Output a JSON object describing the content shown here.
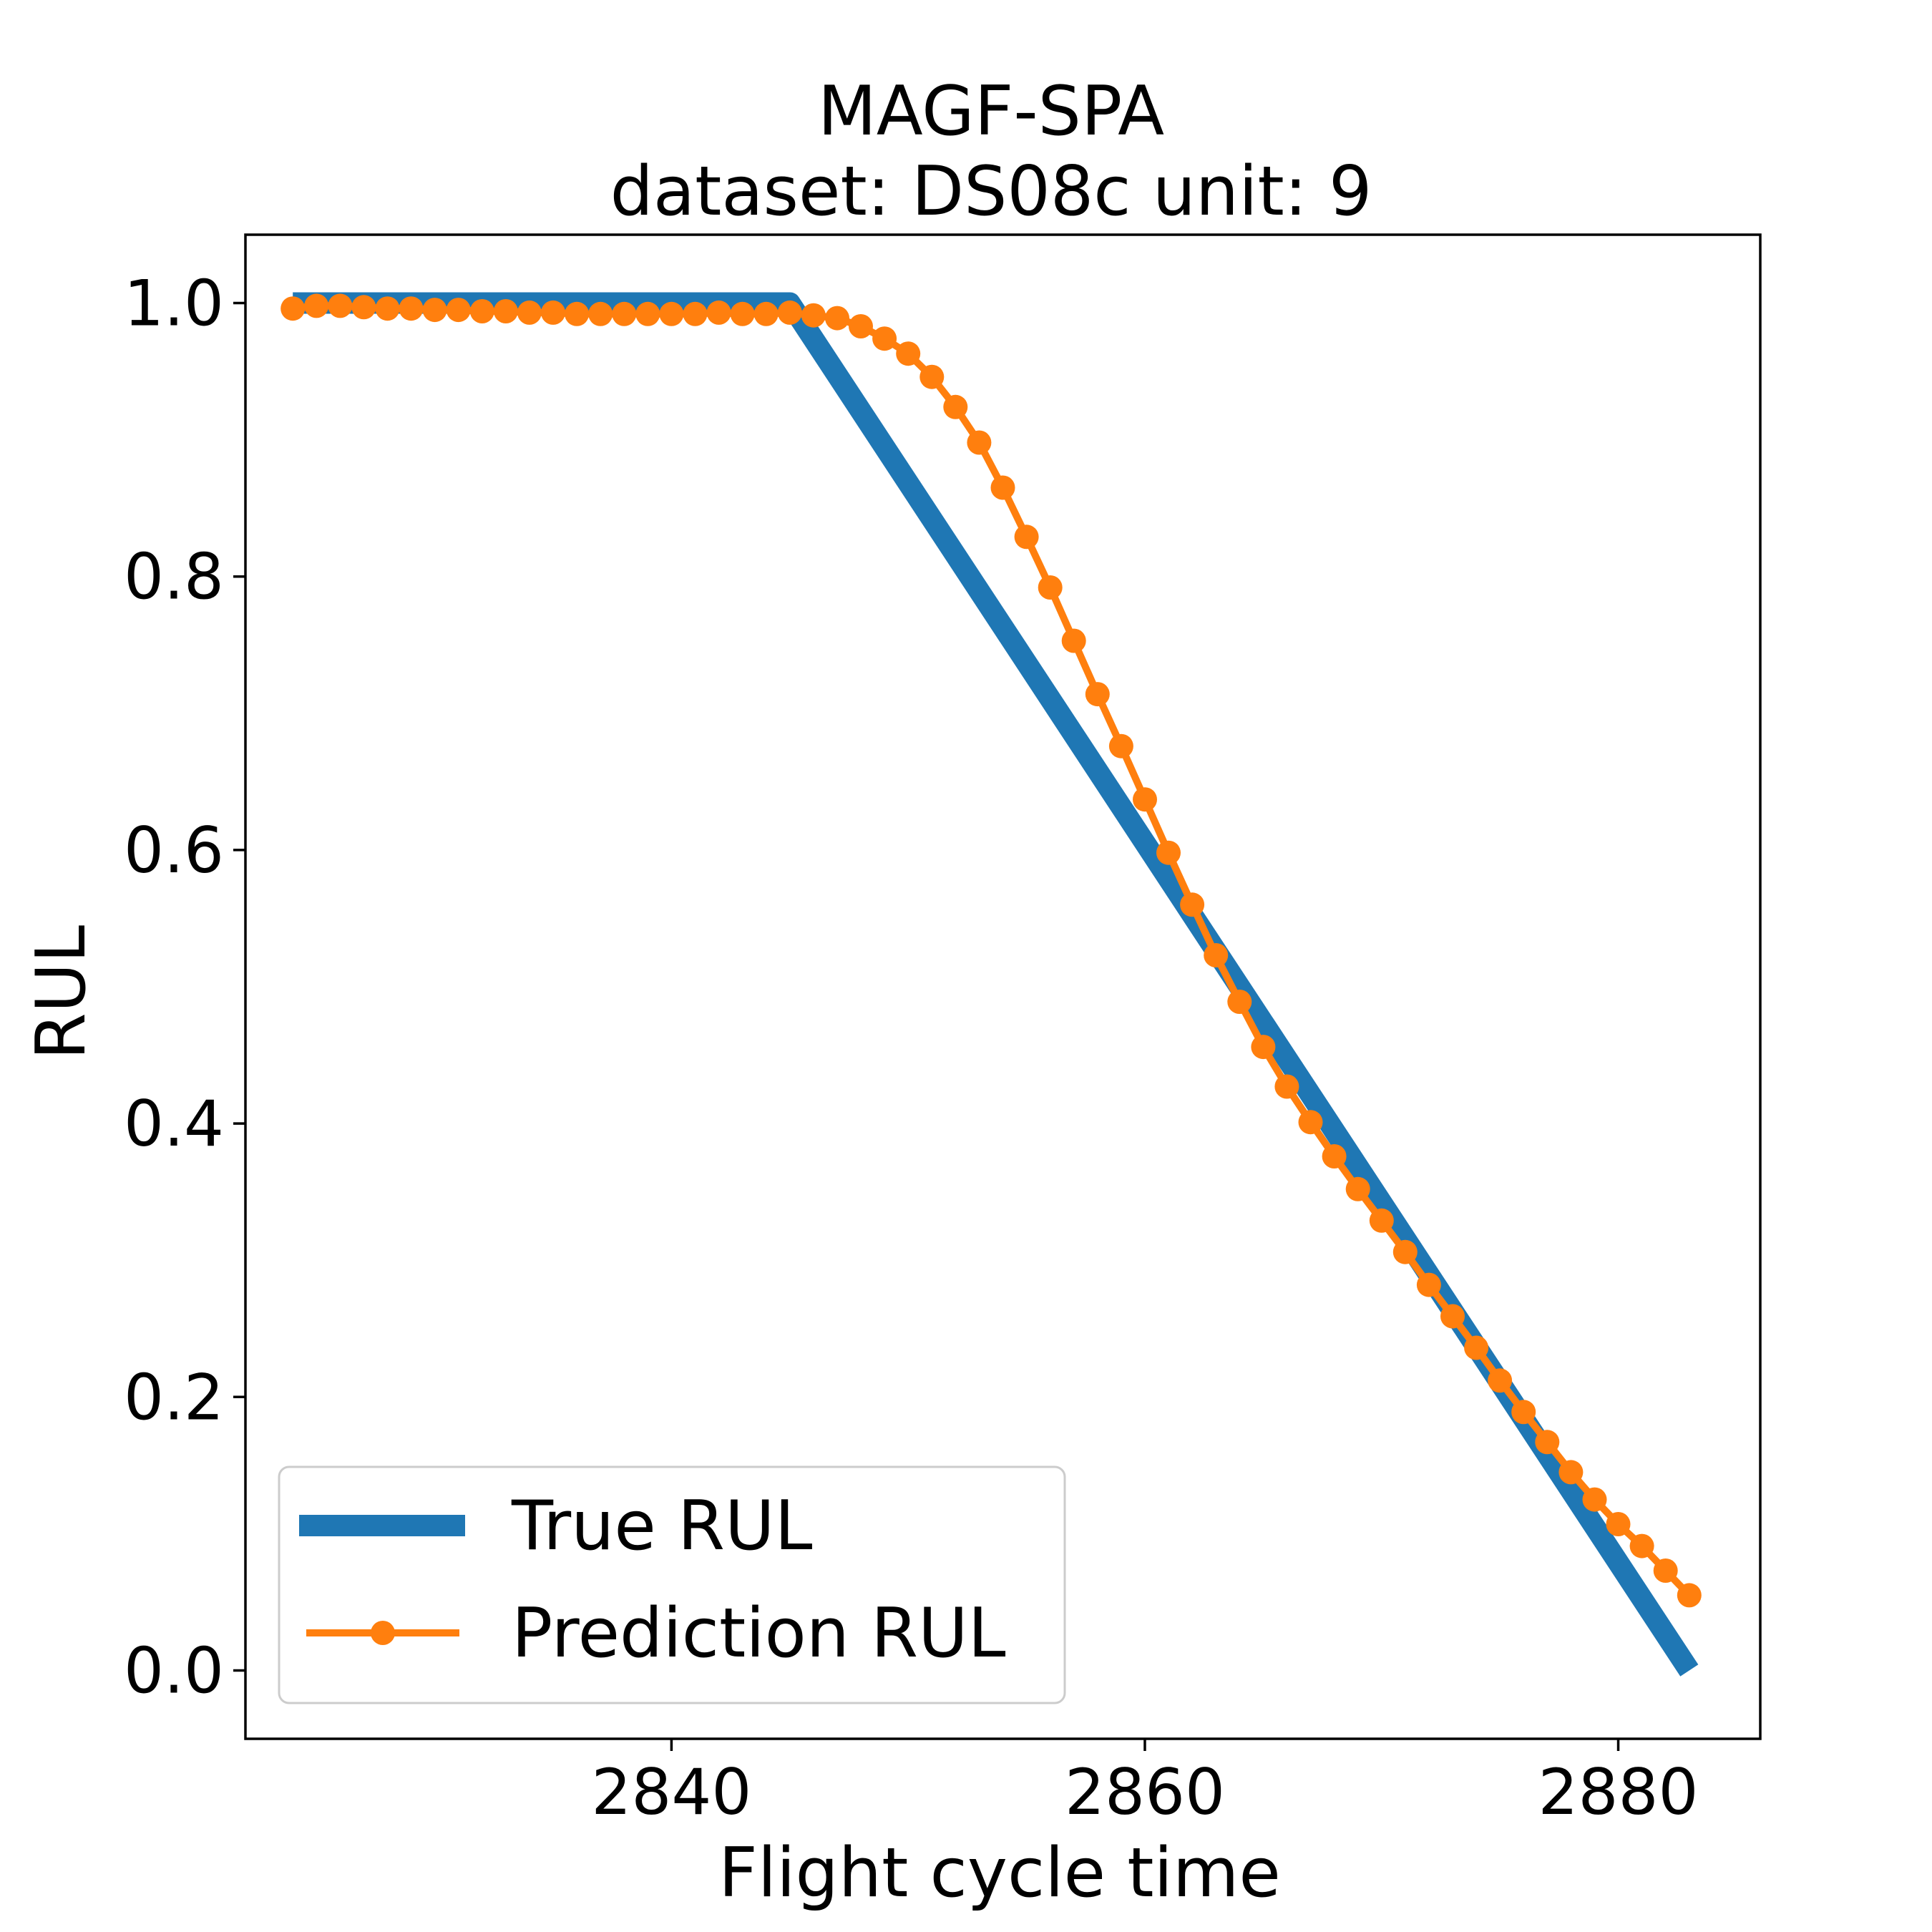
{
  "chart_data": {
    "type": "line",
    "title": "MAGF-SPA",
    "subtitle": "dataset: DS08c unit: 9",
    "xlabel": "Flight cycle time",
    "ylabel": "RUL",
    "xlim": [
      2822.0,
      2886.0
    ],
    "ylim": [
      -0.05,
      1.05
    ],
    "x_ticks": [
      2840,
      2860,
      2880
    ],
    "x_tick_labels": [
      "2840",
      "2860",
      "2880"
    ],
    "y_ticks": [
      0.0,
      0.2,
      0.4,
      0.6,
      0.8,
      1.0
    ],
    "y_tick_labels": [
      "0.0",
      "0.2",
      "0.4",
      "0.6",
      "0.8",
      "1.0"
    ],
    "grid": false,
    "legend_position": "bottom-left",
    "series": [
      {
        "name": "True RUL",
        "color": "#1f77b4",
        "style": "thick-line",
        "x": [
          2824,
          2845,
          2883
        ],
        "y": [
          1.0,
          1.0,
          0.0
        ]
      },
      {
        "name": "Prediction RUL",
        "color": "#ff7f0e",
        "style": "line-with-markers",
        "x": [
          2824,
          2825,
          2826,
          2827,
          2828,
          2829,
          2830,
          2831,
          2832,
          2833,
          2834,
          2835,
          2836,
          2837,
          2838,
          2839,
          2840,
          2841,
          2842,
          2843,
          2844,
          2845,
          2846,
          2847,
          2848,
          2849,
          2850,
          2851,
          2852,
          2853,
          2854,
          2855,
          2856,
          2857,
          2858,
          2859,
          2860,
          2861,
          2862,
          2863,
          2864,
          2865,
          2866,
          2867,
          2868,
          2869,
          2870,
          2871,
          2872,
          2873,
          2874,
          2875,
          2876,
          2877,
          2878,
          2879,
          2880,
          2881,
          2882,
          2883
        ],
        "y": [
          0.996,
          0.998,
          0.998,
          0.997,
          0.996,
          0.996,
          0.995,
          0.995,
          0.994,
          0.994,
          0.993,
          0.993,
          0.992,
          0.992,
          0.992,
          0.992,
          0.992,
          0.992,
          0.993,
          0.992,
          0.992,
          0.993,
          0.991,
          0.989,
          0.983,
          0.974,
          0.963,
          0.946,
          0.924,
          0.898,
          0.865,
          0.829,
          0.792,
          0.753,
          0.714,
          0.676,
          0.637,
          0.598,
          0.56,
          0.523,
          0.489,
          0.456,
          0.427,
          0.401,
          0.376,
          0.352,
          0.329,
          0.306,
          0.282,
          0.259,
          0.236,
          0.212,
          0.189,
          0.167,
          0.145,
          0.125,
          0.107,
          0.091,
          0.073,
          0.055
        ]
      }
    ]
  }
}
